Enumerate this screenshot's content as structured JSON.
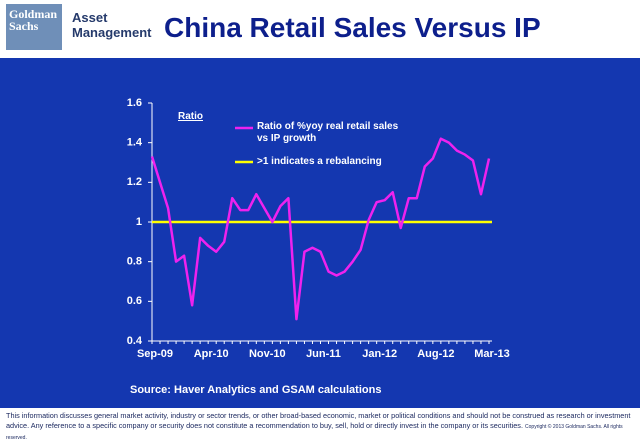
{
  "header": {
    "logo": "Goldman Sachs",
    "division": "Asset Management"
  },
  "chart_data": {
    "type": "line",
    "title": "China Retail Sales Versus IP",
    "legend_title": "Ratio",
    "categories": [
      "Sep-09",
      null,
      null,
      null,
      null,
      null,
      null,
      "Apr-10",
      null,
      null,
      null,
      null,
      null,
      null,
      "Nov-10",
      null,
      null,
      null,
      null,
      null,
      null,
      "Jun-11",
      null,
      null,
      null,
      null,
      null,
      null,
      "Jan-12",
      null,
      null,
      null,
      null,
      null,
      null,
      "Aug-12",
      null,
      null,
      null,
      null,
      null,
      null,
      "Mar-13"
    ],
    "series": [
      {
        "name": "Ratio of %yoy real retail sales vs IP growth",
        "color": "#ee22ee",
        "values": [
          1.33,
          1.2,
          1.07,
          0.8,
          0.83,
          0.58,
          0.92,
          0.88,
          0.85,
          0.9,
          1.12,
          1.06,
          1.06,
          1.14,
          1.07,
          1.0,
          1.08,
          1.12,
          0.51,
          0.85,
          0.87,
          0.85,
          0.75,
          0.73,
          0.75,
          0.8,
          0.86,
          1.01,
          1.1,
          1.11,
          1.15,
          0.97,
          1.12,
          1.12,
          1.28,
          1.32,
          1.42,
          1.4,
          1.36,
          1.34,
          1.31,
          1.14,
          1.32
        ]
      }
    ],
    "reference_line": {
      "name": ">1 indicates a rebalancing",
      "value": 1,
      "color": "#ffff00"
    },
    "ylim": [
      0.4,
      1.6
    ],
    "yticks": [
      0.4,
      0.6,
      0.8,
      1,
      1.2,
      1.4,
      1.6
    ],
    "grid": false,
    "source": "Source: Haver Analytics and GSAM calculations"
  },
  "footer": {
    "disclaimer": "This information discusses general market activity, industry or sector trends, or other broad-based economic, market or political conditions and should not be construed as research or investment advice. Any reference to a specific company or security does not constitute a recommendation to buy, sell, hold or directly invest in the company or its securities.",
    "copyright": "Copyright © 2013 Goldman Sachs. All rights reserved."
  }
}
